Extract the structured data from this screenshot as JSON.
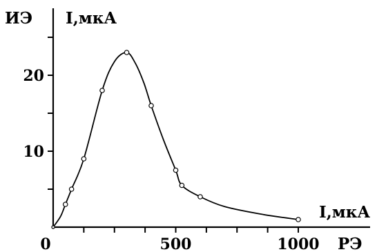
{
  "chart_data": {
    "type": "line",
    "title": "",
    "axes": {
      "x": {
        "range": [
          0,
          1000
        ],
        "tick_labels": [
          "0",
          "500",
          "1000"
        ],
        "labels": [
          "I,мкА",
          "РЭ"
        ]
      },
      "y": {
        "range": [
          0,
          27
        ],
        "tick_labels": [
          "10",
          "20"
        ],
        "labels": [
          "ИЭ",
          "I,мкА"
        ]
      }
    },
    "grid": false,
    "legend": "none",
    "series": [
      {
        "points": [
          {
            "x": 0,
            "y": 0
          },
          {
            "x": 50,
            "y": 3
          },
          {
            "x": 75,
            "y": 5
          },
          {
            "x": 125,
            "y": 9
          },
          {
            "x": 200,
            "y": 18
          },
          {
            "x": 300,
            "y": 23
          },
          {
            "x": 400,
            "y": 16
          },
          {
            "x": 500,
            "y": 7.5
          },
          {
            "x": 525,
            "y": 5.5
          },
          {
            "x": 600,
            "y": 4
          },
          {
            "x": 1000,
            "y": 1
          }
        ],
        "curve_points": [
          {
            "x": 0,
            "y": 0
          },
          {
            "x": 30,
            "y": 1.4
          },
          {
            "x": 50,
            "y": 3
          },
          {
            "x": 75,
            "y": 5
          },
          {
            "x": 125,
            "y": 9
          },
          {
            "x": 200,
            "y": 18
          },
          {
            "x": 250,
            "y": 21.8
          },
          {
            "x": 300,
            "y": 23
          },
          {
            "x": 335,
            "y": 21.6
          },
          {
            "x": 370,
            "y": 19
          },
          {
            "x": 400,
            "y": 16
          },
          {
            "x": 450,
            "y": 11.5
          },
          {
            "x": 500,
            "y": 7.5
          },
          {
            "x": 525,
            "y": 5.5
          },
          {
            "x": 600,
            "y": 4
          },
          {
            "x": 700,
            "y": 2.7
          },
          {
            "x": 850,
            "y": 1.7
          },
          {
            "x": 1000,
            "y": 1
          }
        ],
        "color": "#000000"
      }
    ]
  }
}
